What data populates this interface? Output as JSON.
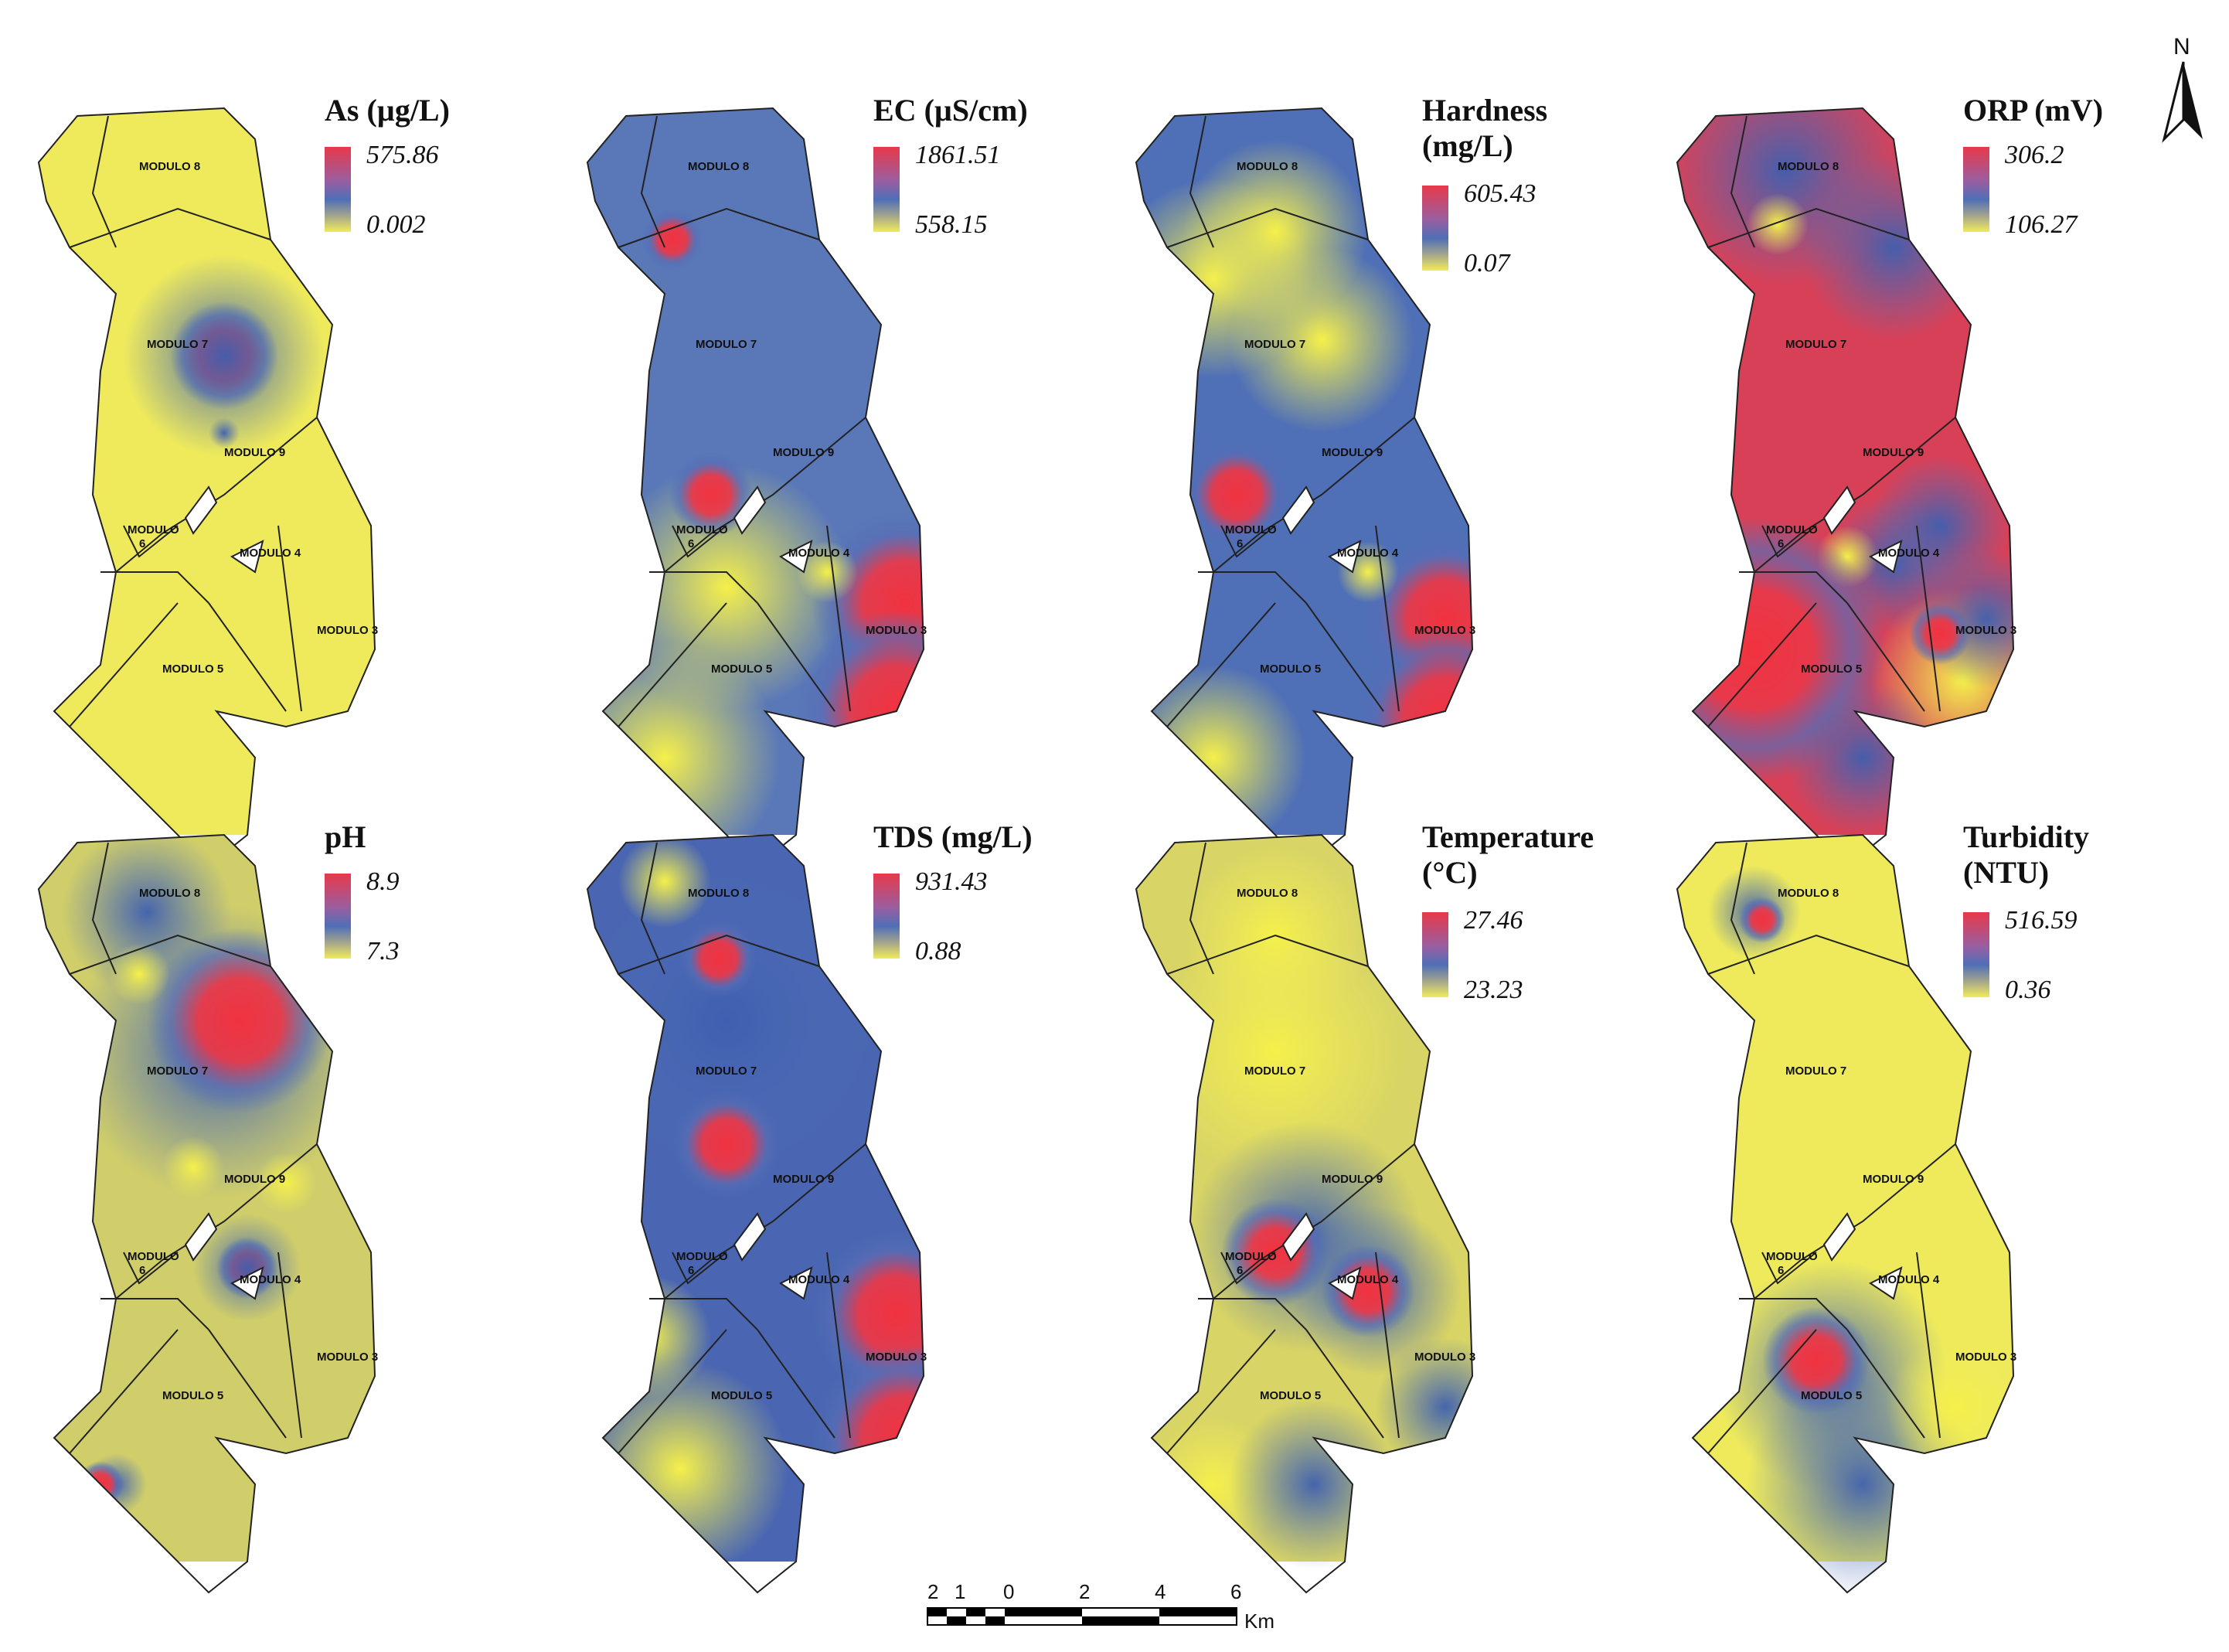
{
  "maps": [
    {
      "title": "As (µg/L)",
      "legend_max": "575.86",
      "legend_min": "0.002",
      "field": "as"
    },
    {
      "title": "EC (µS/cm)",
      "legend_max": "1861.51",
      "legend_min": "558.15",
      "field": "ec"
    },
    {
      "title": "Hardness\n(mg/L)",
      "legend_max": "605.43",
      "legend_min": "0.07",
      "field": "hardness"
    },
    {
      "title": "ORP (mV)",
      "legend_max": "306.2",
      "legend_min": "106.27",
      "field": "orp"
    },
    {
      "title": "pH",
      "legend_max": "8.9",
      "legend_min": "7.3",
      "field": "ph"
    },
    {
      "title": "TDS (mg/L)",
      "legend_max": "931.43",
      "legend_min": "0.88",
      "field": "tds"
    },
    {
      "title": "Temperature\n(°C)",
      "legend_max": "27.46",
      "legend_min": "23.23",
      "field": "temp"
    },
    {
      "title": "Turbidity\n(NTU)",
      "legend_max": "516.59",
      "legend_min": "0.36",
      "field": "turb"
    }
  ],
  "module_labels": {
    "m8": "MODULO 8",
    "m7": "MODULO 7",
    "m9": "MODULO 9",
    "m6a": "MODULO",
    "m6b": "6",
    "m4": "MODULO 4",
    "m3": "MODULO 3",
    "m5": "MODULO 5"
  },
  "scale": {
    "ticks": [
      "2",
      "1",
      "0",
      "2",
      "4",
      "6"
    ],
    "unit": "Km"
  },
  "north": {
    "label": "N"
  },
  "colors": {
    "low": "#f0ec5a",
    "mid": "#4f6fb7",
    "high": "#e8394a"
  }
}
